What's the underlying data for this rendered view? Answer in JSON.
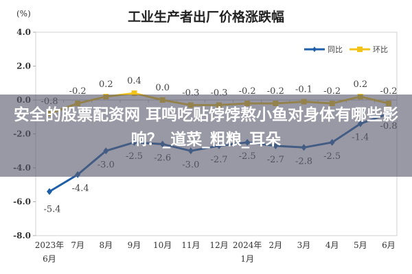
{
  "chart_data": {
    "type": "line",
    "title": "工业生产者出厂价格涨跌幅",
    "unit_label": "(%)",
    "xlabel": "",
    "ylabel": "(%)",
    "ylim": [
      -8.0,
      4.0
    ],
    "yticks": [
      "4.0",
      "2.0",
      "0.0",
      "-2.0",
      "-4.0",
      "-6.0",
      "-8.0"
    ],
    "categories": [
      "2023年\n6月",
      "7月",
      "8月",
      "9月",
      "10月",
      "11月",
      "12月",
      "2024年\n1月",
      "2月",
      "3月",
      "4月",
      "5月",
      "6月"
    ],
    "series": [
      {
        "name": "同比",
        "color": "#1f5fa8",
        "values": [
          -5.4,
          -4.4,
          -3.0,
          -2.5,
          -2.6,
          -3.0,
          -2.7,
          -2.5,
          -2.7,
          -2.8,
          -2.5,
          -1.4,
          -0.8
        ],
        "labels": [
          "-5.4",
          "-4.4",
          "-3.0",
          "-2.5",
          "-2.6",
          "-3.0",
          "-2.7",
          "-2.5",
          "-2.7",
          "-2.8",
          "-2.5",
          "-1.4",
          "-0.8"
        ]
      },
      {
        "name": "环比",
        "color": "#f2c318",
        "values": [
          -0.8,
          -0.2,
          0.2,
          0.4,
          0.0,
          -0.3,
          -0.3,
          -0.2,
          -0.2,
          -0.1,
          -0.2,
          0.2,
          -0.2
        ],
        "labels": [
          "-0.8",
          "-0.2",
          "0.2",
          "0.4",
          "0.0",
          "-0.3",
          "-0.3",
          "-0.2",
          "-0.2",
          "-0.1",
          "-0.2",
          "0.2",
          "-0.2"
        ]
      }
    ],
    "legend": {
      "position": "top-right",
      "entries": [
        "同比",
        "环比"
      ]
    },
    "grid": false
  },
  "overlay": {
    "text": "安全的股票配资网 耳鸣吃贴饽饽熬小鱼对身体有哪些影响？_道菜_粗粮_耳朵"
  }
}
